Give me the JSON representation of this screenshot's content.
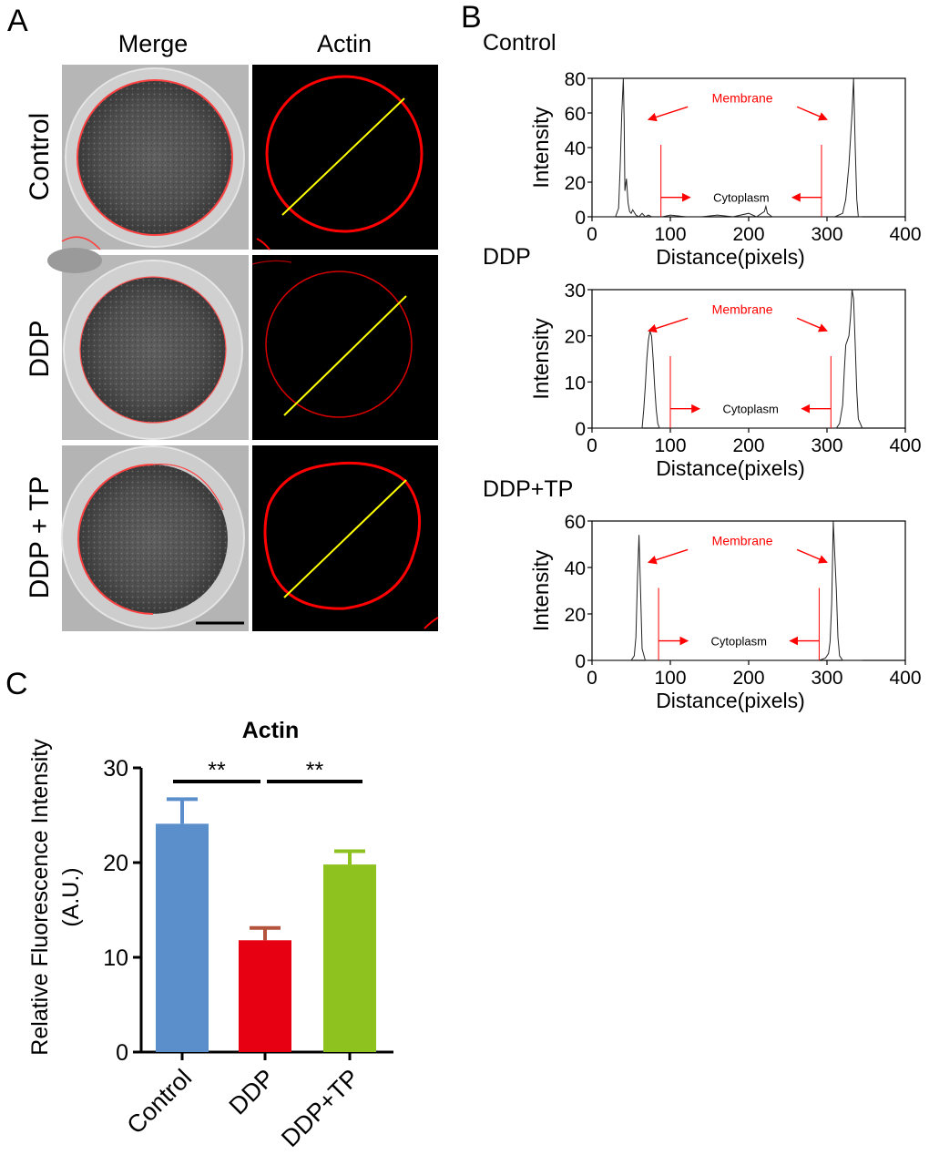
{
  "panel_letters": {
    "a": "A",
    "b": "B",
    "c": "C"
  },
  "panel_a": {
    "columns": [
      "Merge",
      "Actin"
    ],
    "rows": [
      "Control",
      "DDP",
      "DDP + TP"
    ]
  },
  "colors": {
    "membrane_red": "#ff0000",
    "line_yellow": "#ffff00",
    "bar_control": "#5b8fcc",
    "bar_control_err": "#5b8fcc",
    "bar_ddp": "#e60012",
    "bar_ddp_err": "#b5543c",
    "bar_ddptp": "#8dc21f",
    "bar_ddptp_err": "#8dc21f"
  },
  "chart_data": [
    {
      "type": "line",
      "panel": "B",
      "title": "Control",
      "xlabel": "Distance(pixels)",
      "ylabel": "Intensity",
      "xlim": [
        0,
        400
      ],
      "ylim": [
        0,
        80
      ],
      "xticks": [
        0,
        100,
        200,
        300,
        400
      ],
      "yticks": [
        0,
        20,
        40,
        60,
        80
      ],
      "annotations": {
        "membrane": "Membrane",
        "cytoplasm": "Cytoplasm"
      },
      "cytoplasm_bounds": [
        88,
        293
      ],
      "profile": {
        "x": [
          0,
          30,
          34,
          36,
          38,
          40,
          41,
          42,
          44,
          46,
          48,
          50,
          52,
          56,
          60,
          64,
          68,
          72,
          76,
          80,
          90,
          100,
          120,
          140,
          160,
          180,
          200,
          210,
          220,
          222,
          224,
          230,
          250,
          280,
          300,
          310,
          320,
          324,
          328,
          330,
          332,
          334,
          336,
          338,
          340,
          345
        ],
        "y": [
          0,
          0,
          5,
          30,
          60,
          80,
          55,
          15,
          22,
          8,
          3,
          2,
          4,
          1,
          0,
          2,
          0,
          1,
          0,
          0,
          0,
          1,
          0,
          0,
          1,
          0,
          2,
          0,
          3,
          6,
          2,
          0,
          0,
          0,
          0,
          0,
          2,
          10,
          30,
          45,
          60,
          80,
          40,
          10,
          0,
          0
        ]
      }
    },
    {
      "type": "line",
      "panel": "B",
      "title": "DDP",
      "xlabel": "Distance(pixels)",
      "ylabel": "Intensity",
      "xlim": [
        0,
        400
      ],
      "ylim": [
        0,
        30
      ],
      "xticks": [
        0,
        100,
        200,
        300,
        400
      ],
      "yticks": [
        0,
        10,
        20,
        30
      ],
      "annotations": {
        "membrane": "Membrane",
        "cytoplasm": "Cytoplasm"
      },
      "cytoplasm_bounds": [
        100,
        305
      ],
      "profile": {
        "x": [
          0,
          60,
          64,
          66,
          68,
          70,
          72,
          74,
          76,
          78,
          80,
          82,
          84,
          86,
          90,
          100,
          200,
          300,
          310,
          312,
          316,
          320,
          322,
          324,
          326,
          328,
          330,
          332,
          334,
          336,
          338,
          340,
          345
        ],
        "y": [
          0,
          0,
          0,
          4,
          9,
          15,
          19,
          21,
          20,
          15,
          9,
          4,
          1,
          0,
          0,
          0,
          0,
          0,
          0,
          0,
          1,
          5,
          12,
          18,
          19,
          20,
          24,
          30,
          28,
          18,
          8,
          2,
          0
        ]
      }
    },
    {
      "type": "line",
      "panel": "B",
      "title": "DDP+TP",
      "xlabel": "Distance(pixels)",
      "ylabel": "Intensity",
      "xlim": [
        0,
        400
      ],
      "ylim": [
        0,
        60
      ],
      "xticks": [
        0,
        100,
        200,
        300,
        400
      ],
      "yticks": [
        0,
        20,
        40,
        60
      ],
      "annotations": {
        "membrane": "Membrane",
        "cytoplasm": "Cytoplasm"
      },
      "cytoplasm_bounds": [
        85,
        290
      ],
      "profile": {
        "x": [
          0,
          50,
          54,
          56,
          58,
          60,
          62,
          64,
          68,
          100,
          200,
          290,
          298,
          302,
          304,
          306,
          308,
          310,
          312,
          314,
          316,
          320,
          345
        ],
        "y": [
          0,
          0,
          2,
          10,
          35,
          54,
          30,
          5,
          0,
          0,
          0,
          0,
          1,
          3,
          8,
          25,
          60,
          45,
          30,
          10,
          2,
          0,
          0
        ]
      }
    },
    {
      "type": "bar",
      "panel": "C",
      "title": "Actin",
      "xlabel": "",
      "ylabel": "Relative Fluorescence Intensity (A.U.)",
      "ylabel_lines": [
        "Relative Fluorescence Intensity",
        "(A.U.)"
      ],
      "categories": [
        "Control",
        "DDP",
        "DDP+TP"
      ],
      "values": [
        24.1,
        11.8,
        19.8
      ],
      "errors": [
        2.6,
        1.3,
        1.4
      ],
      "ylim": [
        0,
        30
      ],
      "yticks": [
        0,
        10,
        20,
        30
      ],
      "significance": [
        {
          "from": 0,
          "to": 1,
          "label": "**"
        },
        {
          "from": 1,
          "to": 2,
          "label": "**"
        }
      ]
    }
  ]
}
